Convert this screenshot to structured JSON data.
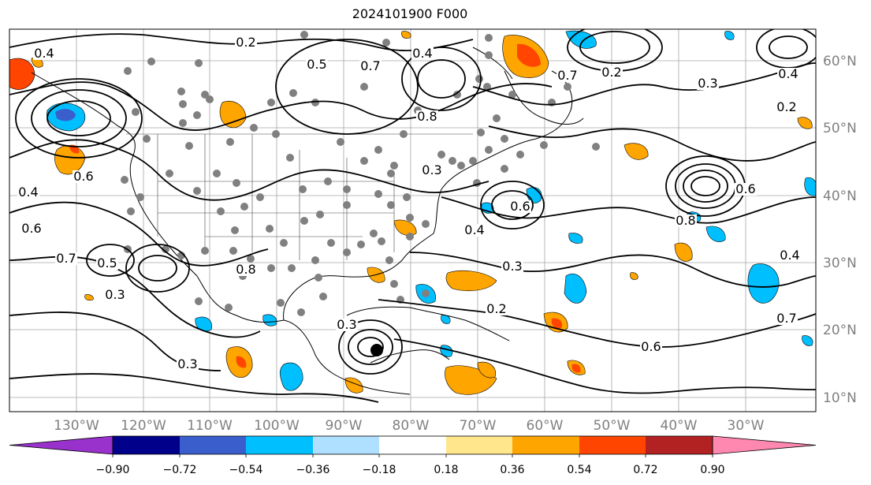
{
  "title": "2024101900 F000",
  "lon_labels": [
    "130°W",
    "120°W",
    "110°W",
    "100°W",
    "90°W",
    "80°W",
    "70°W",
    "60°W",
    "50°W",
    "40°W",
    "30°W"
  ],
  "lat_labels": [
    "60°N",
    "50°N",
    "40°N",
    "30°N",
    "20°N",
    "10°N"
  ],
  "colorbar": {
    "ticks": [
      "−0.90",
      "−0.72",
      "−0.54",
      "−0.36",
      "−0.18",
      "0.18",
      "0.36",
      "0.54",
      "0.72",
      "0.90"
    ],
    "colors": [
      "#9932cc",
      "#00008b",
      "#3a5fcd",
      "#00bfff",
      "#afe0ff",
      "#ffffff",
      "#ffe68c",
      "#ffa500",
      "#ff4500",
      "#b22222",
      "#ff88b0"
    ]
  },
  "contour_labels": [
    "0.2",
    "0.7",
    "0.4",
    "0.5",
    "0.4",
    "0.8",
    "0.3",
    "0.4",
    "0.6",
    "0.6",
    "0.7",
    "0.5",
    "0.3",
    "0.3",
    "0.2",
    "0.6",
    "0.7",
    "0.8",
    "0.6",
    "0.3",
    "0.2",
    "0.4",
    "0.3",
    "0.4",
    "0.2",
    "0.3",
    "0.4",
    "0.6",
    "0.7",
    "0.8"
  ],
  "colors": {
    "contour": "#000000",
    "grid": "#808080",
    "state_borders": "#555555",
    "dots": "#808080"
  }
}
